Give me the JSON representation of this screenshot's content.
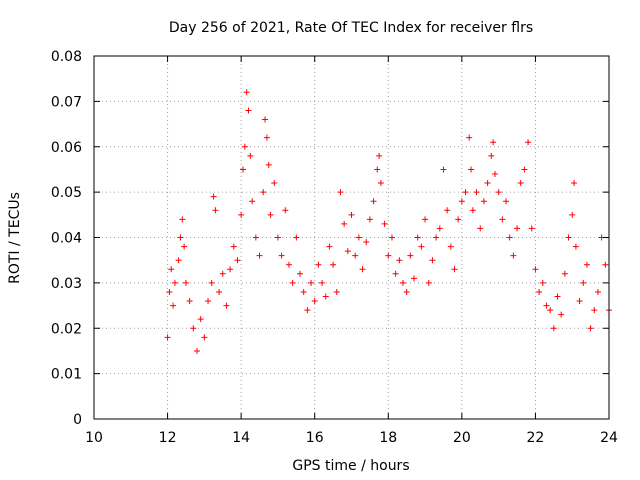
{
  "chart_data": {
    "type": "scatter",
    "title": "Day 256 of 2021, Rate Of TEC Index for receiver flrs",
    "xlabel": "GPS time / hours",
    "ylabel": "ROTI / TECUs",
    "xlim": [
      10,
      24
    ],
    "ylim": [
      0,
      0.08
    ],
    "x_ticks": [
      10,
      12,
      14,
      16,
      18,
      20,
      22,
      24
    ],
    "y_ticks": [
      0,
      0.01,
      0.02,
      0.03,
      0.04,
      0.05,
      0.06,
      0.07,
      0.08
    ],
    "x_tick_labels": [
      "10",
      "12",
      "14",
      "16",
      "18",
      "20",
      "22",
      "24"
    ],
    "y_tick_labels": [
      "0",
      "0.01",
      "0.02",
      "0.03",
      "0.04",
      "0.05",
      "0.06",
      "0.07",
      "0.08"
    ],
    "grid": true,
    "marker": "+",
    "color": "#ff0000",
    "series": [
      {
        "x": [
          12.0,
          12.05,
          12.1,
          12.15,
          12.2,
          12.3,
          12.35,
          12.4,
          12.45,
          12.5,
          12.6,
          12.7,
          12.8,
          12.9,
          13.0,
          13.1,
          13.2,
          13.25,
          13.3,
          13.4,
          13.5,
          13.6,
          13.7,
          13.8,
          13.9,
          14.0,
          14.05,
          14.1,
          14.15,
          14.2,
          14.25,
          14.3,
          14.4,
          14.5,
          14.6,
          14.65,
          14.7,
          14.75,
          14.8,
          14.9,
          15.0,
          15.1,
          15.2,
          15.3,
          15.4,
          15.5,
          15.6,
          15.7,
          15.8,
          15.9,
          16.0,
          16.1,
          16.2,
          16.3,
          16.4,
          16.5,
          16.6,
          16.7,
          16.8,
          16.9,
          17.0,
          17.1,
          17.2,
          17.3,
          17.4,
          17.5,
          17.6,
          17.7,
          17.75,
          17.8,
          17.9,
          18.0,
          18.1,
          18.2,
          18.3,
          18.4,
          18.5,
          18.6,
          18.7,
          18.8,
          18.9,
          19.0,
          19.1,
          19.2,
          19.3,
          19.4,
          19.5,
          19.6,
          19.7,
          19.8,
          19.9,
          20.0,
          20.1,
          20.2,
          20.25,
          20.3,
          20.4,
          20.5,
          20.6,
          20.7,
          20.8,
          20.85,
          20.9,
          21.0,
          21.1,
          21.2,
          21.3,
          21.4,
          21.5,
          21.6,
          21.7,
          21.8,
          21.9,
          22.0,
          22.1,
          22.2,
          22.3,
          22.4,
          22.5,
          22.6,
          22.7,
          22.8,
          22.9,
          23.0,
          23.05,
          23.1,
          23.2,
          23.3,
          23.4,
          23.5,
          23.6,
          23.7,
          23.8,
          23.9,
          24.0
        ],
        "y": [
          0.018,
          0.028,
          0.033,
          0.025,
          0.03,
          0.035,
          0.04,
          0.044,
          0.038,
          0.03,
          0.026,
          0.02,
          0.015,
          0.022,
          0.018,
          0.026,
          0.03,
          0.049,
          0.046,
          0.028,
          0.032,
          0.025,
          0.033,
          0.038,
          0.035,
          0.045,
          0.055,
          0.06,
          0.072,
          0.068,
          0.058,
          0.048,
          0.04,
          0.036,
          0.05,
          0.066,
          0.062,
          0.056,
          0.045,
          0.052,
          0.04,
          0.036,
          0.046,
          0.034,
          0.03,
          0.04,
          0.032,
          0.028,
          0.024,
          0.03,
          0.026,
          0.034,
          0.03,
          0.027,
          0.038,
          0.034,
          0.028,
          0.05,
          0.043,
          0.037,
          0.045,
          0.036,
          0.04,
          0.033,
          0.039,
          0.044,
          0.048,
          0.055,
          0.058,
          0.052,
          0.043,
          0.036,
          0.04,
          0.032,
          0.035,
          0.03,
          0.028,
          0.036,
          0.031,
          0.04,
          0.038,
          0.044,
          0.03,
          0.035,
          0.04,
          0.042,
          0.055,
          0.046,
          0.038,
          0.033,
          0.044,
          0.048,
          0.05,
          0.062,
          0.055,
          0.046,
          0.05,
          0.042,
          0.048,
          0.052,
          0.058,
          0.061,
          0.054,
          0.05,
          0.044,
          0.048,
          0.04,
          0.036,
          0.042,
          0.052,
          0.055,
          0.061,
          0.042,
          0.033,
          0.028,
          0.03,
          0.025,
          0.024,
          0.02,
          0.027,
          0.023,
          0.032,
          0.04,
          0.045,
          0.052,
          0.038,
          0.026,
          0.03,
          0.034,
          0.02,
          0.024,
          0.028,
          0.04,
          0.034,
          0.024
        ]
      }
    ]
  }
}
